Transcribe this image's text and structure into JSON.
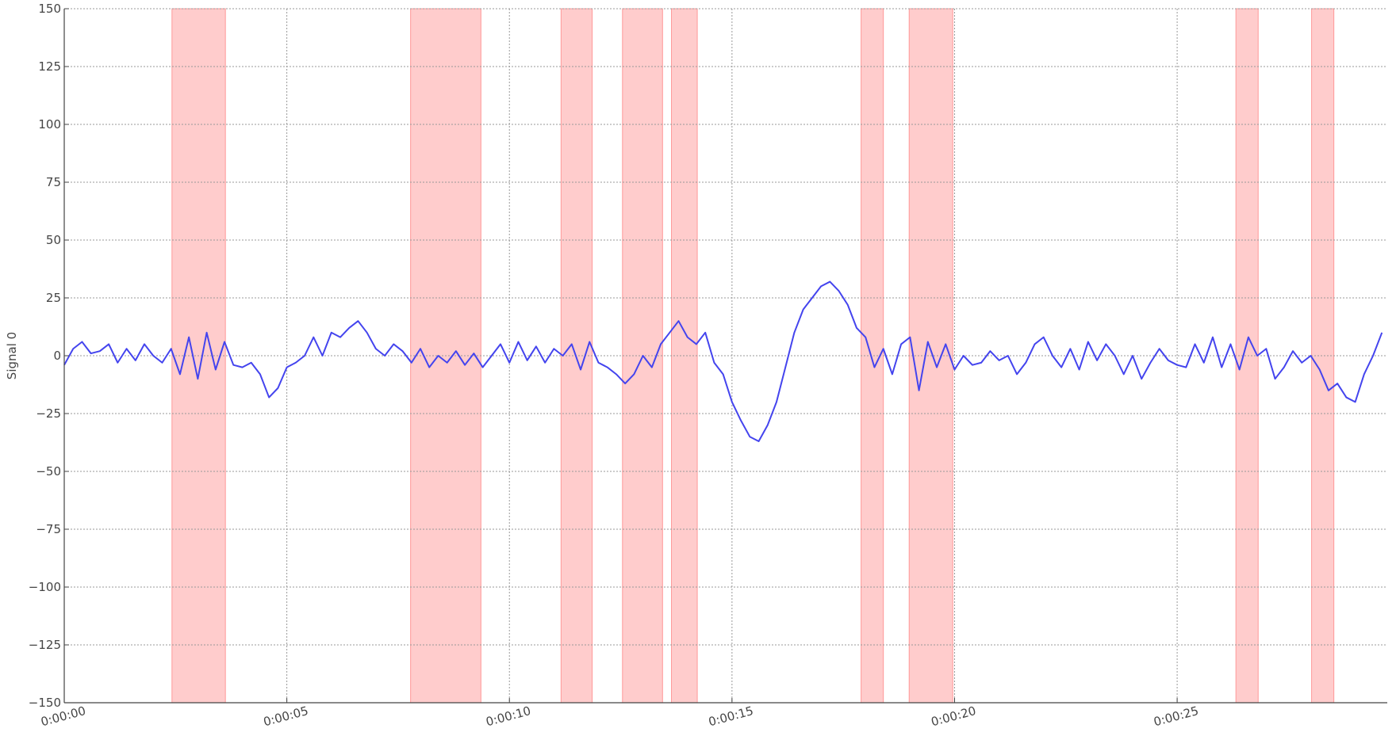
{
  "chart_data": {
    "type": "line",
    "y_label": "Signal 0",
    "color": "#4444ee",
    "span_color": "#ff9999",
    "grid": true,
    "xlim": [
      0,
      29.72
    ],
    "ylim": [
      -150,
      150
    ],
    "xticks": [
      {
        "value": 0,
        "label": "0:00:00"
      },
      {
        "value": 5,
        "label": "0:00:05"
      },
      {
        "value": 10,
        "label": "0:00:10"
      },
      {
        "value": 15,
        "label": "0:00:15"
      },
      {
        "value": 20,
        "label": "0:00:20"
      },
      {
        "value": 25,
        "label": "0:00:25"
      }
    ],
    "yticks": [
      {
        "value": -150,
        "label": "−150"
      },
      {
        "value": -125,
        "label": "−125"
      },
      {
        "value": -100,
        "label": "−100"
      },
      {
        "value": -75,
        "label": "−75"
      },
      {
        "value": -50,
        "label": "−50"
      },
      {
        "value": -25,
        "label": "−25"
      },
      0,
      25,
      50,
      75,
      100,
      125,
      150
    ],
    "spans": [
      [
        2.42,
        3.62
      ],
      [
        7.78,
        9.36
      ],
      [
        11.16,
        11.86
      ],
      [
        12.54,
        13.44
      ],
      [
        13.64,
        14.22
      ],
      [
        17.9,
        18.4
      ],
      [
        18.98,
        19.96
      ],
      [
        26.32,
        26.82
      ],
      [
        28.02,
        28.52
      ]
    ],
    "x": [
      0,
      0.2,
      0.4,
      0.6,
      0.8,
      1,
      1.2,
      1.4,
      1.6,
      1.8,
      2,
      2.2,
      2.4,
      2.6,
      2.8,
      3,
      3.2,
      3.4,
      3.6,
      3.8,
      4,
      4.2,
      4.4,
      4.6,
      4.8,
      5,
      5.2,
      5.4,
      5.6,
      5.8,
      6,
      6.2,
      6.4,
      6.6,
      6.8,
      7,
      7.2,
      7.4,
      7.6,
      7.8,
      8,
      8.2,
      8.4,
      8.6,
      8.8,
      9,
      9.2,
      9.4,
      9.6,
      9.8,
      10,
      10.2,
      10.4,
      10.6,
      10.8,
      11,
      11.2,
      11.4,
      11.6,
      11.8,
      12,
      12.2,
      12.4,
      12.6,
      12.8,
      13,
      13.2,
      13.4,
      13.6,
      13.8,
      14,
      14.2,
      14.4,
      14.6,
      14.8,
      15,
      15.2,
      15.4,
      15.6,
      15.8,
      16,
      16.2,
      16.4,
      16.6,
      16.8,
      17,
      17.2,
      17.4,
      17.6,
      17.8,
      18,
      18.2,
      18.4,
      18.6,
      18.8,
      19,
      19.2,
      19.4,
      19.6,
      19.8,
      20,
      20.2,
      20.4,
      20.6,
      20.8,
      21,
      21.2,
      21.4,
      21.6,
      21.8,
      22,
      22.2,
      22.4,
      22.6,
      22.8,
      23,
      23.2,
      23.4,
      23.6,
      23.8,
      24,
      24.2,
      24.4,
      24.6,
      24.8,
      25,
      25.2,
      25.4,
      25.6,
      25.8,
      26,
      26.2,
      26.4,
      26.6,
      26.8,
      27,
      27.2,
      27.4,
      27.6,
      27.8,
      28,
      28.2,
      28.4,
      28.6,
      28.8,
      29,
      29.2,
      29.4,
      29.6
    ],
    "values": [
      -4,
      3,
      6,
      1,
      2,
      5,
      -3,
      3,
      -2,
      5,
      0,
      -3,
      3,
      -8,
      8,
      -10,
      10,
      -6,
      6,
      -4,
      -5,
      -3,
      -8,
      -18,
      -14,
      -5,
      -3,
      0,
      8,
      0,
      10,
      8,
      12,
      15,
      10,
      3,
      0,
      5,
      2,
      -3,
      3,
      -5,
      0,
      -3,
      2,
      -4,
      1,
      -5,
      0,
      5,
      -3,
      6,
      -2,
      4,
      -3,
      3,
      0,
      5,
      -6,
      6,
      -3,
      -5,
      -8,
      -12,
      -8,
      0,
      -5,
      5,
      10,
      15,
      8,
      5,
      10,
      -3,
      -8,
      -20,
      -28,
      -35,
      -37,
      -30,
      -20,
      -5,
      10,
      20,
      25,
      30,
      32,
      28,
      22,
      12,
      8,
      -5,
      3,
      -8,
      5,
      8,
      -15,
      6,
      -5,
      5,
      -6,
      0,
      -4,
      -3,
      2,
      -2,
      0,
      -8,
      -3,
      5,
      8,
      0,
      -5,
      3,
      -6,
      6,
      -2,
      5,
      0,
      -8,
      0,
      -10,
      -3,
      3,
      -2,
      -4,
      -5,
      5,
      -3,
      8,
      -5,
      5,
      -6,
      8,
      0,
      3,
      -10,
      -5,
      2,
      -3,
      0,
      -6,
      -15,
      -12,
      -18,
      -20,
      -8,
      0,
      10
    ]
  }
}
